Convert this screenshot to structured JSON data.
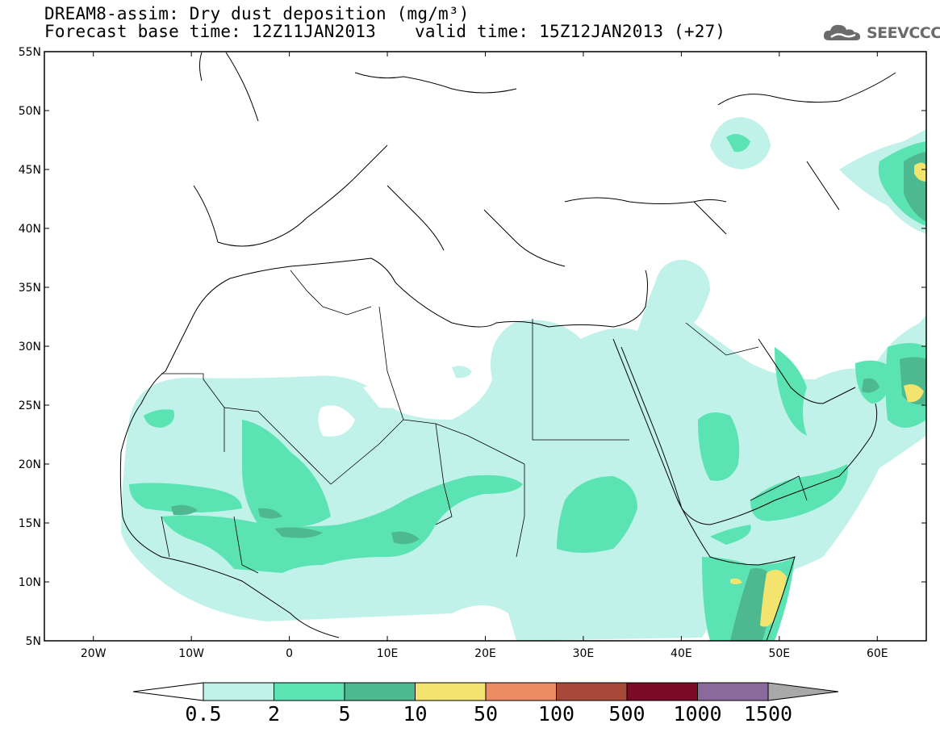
{
  "title": {
    "line1": "DREAM8-assim: Dry dust deposition (mg/m³)",
    "base_time": "Forecast base time: 12Z11JAN2013",
    "valid_time": "valid time: 15Z12JAN2013 (+27)"
  },
  "logo": {
    "text": "SEEVCCC",
    "icon": "cloud-icon"
  },
  "map": {
    "lon_range": [
      -25,
      65
    ],
    "lat_range": [
      5,
      55
    ],
    "lon_ticks": [
      "20W",
      "10W",
      "0",
      "10E",
      "20E",
      "30E",
      "40E",
      "50E",
      "60E"
    ],
    "lat_ticks": [
      "55N",
      "50N",
      "45N",
      "40N",
      "35N",
      "30N",
      "25N",
      "20N",
      "15N",
      "10N",
      "5N"
    ]
  },
  "colorbar": {
    "labels": [
      "0.5",
      "2",
      "5",
      "10",
      "50",
      "100",
      "500",
      "1000",
      "1500"
    ],
    "colors": [
      "#ffffff",
      "#c1f2ea",
      "#5ce3b4",
      "#4eb890",
      "#f2e46e",
      "#ec8c62",
      "#a8483a",
      "#7a0a26",
      "#8a6a9c",
      "#a8a8a8"
    ]
  },
  "legend_levels": {
    "light": "#c1f2ea",
    "medium": "#5ce3b4",
    "dark": "#4eb890",
    "yellow": "#f2e46e"
  }
}
